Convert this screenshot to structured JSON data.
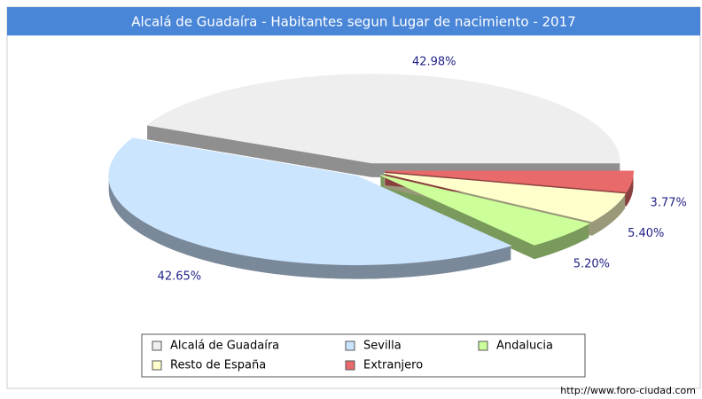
{
  "chart_data": {
    "type": "pie",
    "title": "Alcalá de Guadaíra - Habitantes segun Lugar de nacimiento - 2017",
    "categories": [
      "Alcalá de Guadaíra",
      "Sevilla",
      "Andalucia",
      "Resto de España",
      "Extranjero"
    ],
    "values": [
      42.98,
      42.65,
      5.2,
      5.4,
      3.77
    ],
    "value_labels": [
      "42.98%",
      "42.65%",
      "5.20%",
      "5.40%",
      "3.77%"
    ],
    "colors": [
      "#eeeeee",
      "#cce5ff",
      "#ccff99",
      "#ffffcc",
      "#e86a6a"
    ],
    "footer": "http://www.foro-ciudad.com"
  }
}
